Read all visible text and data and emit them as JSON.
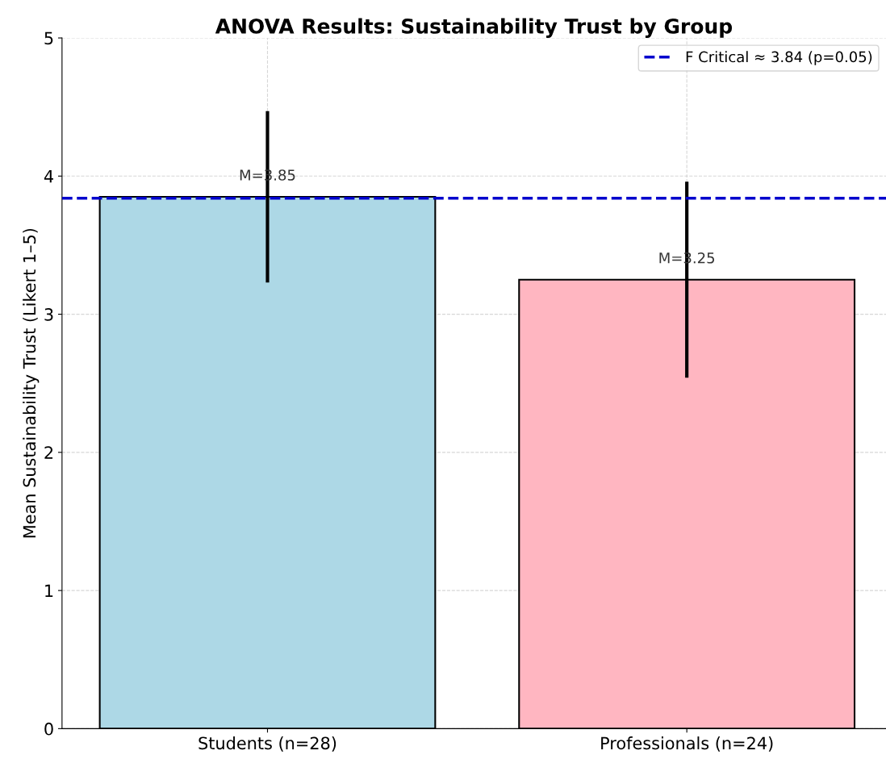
{
  "chart_data": {
    "type": "bar",
    "title": "ANOVA Results: Sustainability Trust by Group",
    "ylabel": "Mean Sustainability Trust (Likert 1–5)",
    "categories": [
      "Students (n=28)",
      "Professionals (n=24)"
    ],
    "values": [
      3.85,
      3.25
    ],
    "colors": [
      "#add8e6",
      "#ffb6c1"
    ],
    "errors": [
      0.62,
      0.71
    ],
    "value_labels": [
      "M=3.85",
      "M=3.25"
    ],
    "ylim": [
      0,
      5
    ],
    "yticks": [
      0,
      1,
      2,
      3,
      4,
      5
    ],
    "ref_lines": [
      {
        "axis": "y",
        "value": 3.84,
        "label": "F Critical ≈ 3.84 (p=0.05)",
        "color": "#0000cd",
        "line_style": "dashed"
      }
    ],
    "grid": true,
    "legend": "top right"
  }
}
